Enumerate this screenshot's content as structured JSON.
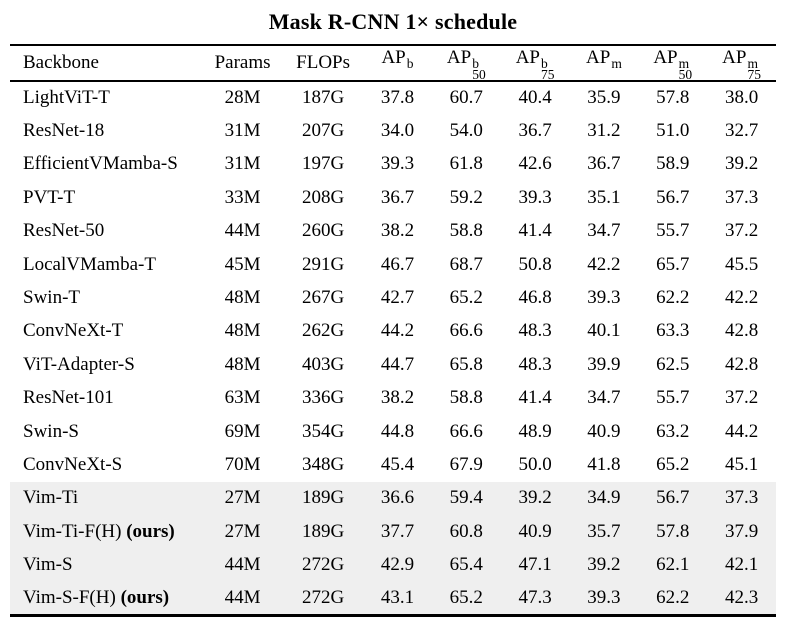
{
  "title": "Mask R-CNN 1× schedule",
  "colors": {
    "text": "#000000",
    "rule": "#000000",
    "highlight_row_bg": "#efefef",
    "background": "#ffffff"
  },
  "table": {
    "columns": [
      {
        "label": "Backbone",
        "sup": "",
        "sub": ""
      },
      {
        "label": "Params",
        "sup": "",
        "sub": ""
      },
      {
        "label": "FLOPs",
        "sup": "",
        "sub": ""
      },
      {
        "label": "AP",
        "sup": "b",
        "sub": ""
      },
      {
        "label": "AP",
        "sup": "b",
        "sub": "50"
      },
      {
        "label": "AP",
        "sup": "b",
        "sub": "75"
      },
      {
        "label": "AP",
        "sup": "m",
        "sub": ""
      },
      {
        "label": "AP",
        "sup": "m",
        "sub": "50"
      },
      {
        "label": "AP",
        "sup": "m",
        "sub": "75"
      }
    ],
    "rows": [
      {
        "backbone": "LightViT-T",
        "suffix": "",
        "highlighted": false,
        "values": [
          "28M",
          "187G",
          "37.8",
          "60.7",
          "40.4",
          "35.9",
          "57.8",
          "38.0"
        ]
      },
      {
        "backbone": "ResNet-18",
        "suffix": "",
        "highlighted": false,
        "values": [
          "31M",
          "207G",
          "34.0",
          "54.0",
          "36.7",
          "31.2",
          "51.0",
          "32.7"
        ]
      },
      {
        "backbone": "EfficientVMamba-S",
        "suffix": "",
        "highlighted": false,
        "values": [
          "31M",
          "197G",
          "39.3",
          "61.8",
          "42.6",
          "36.7",
          "58.9",
          "39.2"
        ]
      },
      {
        "backbone": "PVT-T",
        "suffix": "",
        "highlighted": false,
        "values": [
          "33M",
          "208G",
          "36.7",
          "59.2",
          "39.3",
          "35.1",
          "56.7",
          "37.3"
        ]
      },
      {
        "backbone": "ResNet-50",
        "suffix": "",
        "highlighted": false,
        "values": [
          "44M",
          "260G",
          "38.2",
          "58.8",
          "41.4",
          "34.7",
          "55.7",
          "37.2"
        ]
      },
      {
        "backbone": "LocalVMamba-T",
        "suffix": "",
        "highlighted": false,
        "values": [
          "45M",
          "291G",
          "46.7",
          "68.7",
          "50.8",
          "42.2",
          "65.7",
          "45.5"
        ]
      },
      {
        "backbone": "Swin-T",
        "suffix": "",
        "highlighted": false,
        "values": [
          "48M",
          "267G",
          "42.7",
          "65.2",
          "46.8",
          "39.3",
          "62.2",
          "42.2"
        ]
      },
      {
        "backbone": "ConvNeXt-T",
        "suffix": "",
        "highlighted": false,
        "values": [
          "48M",
          "262G",
          "44.2",
          "66.6",
          "48.3",
          "40.1",
          "63.3",
          "42.8"
        ]
      },
      {
        "backbone": "ViT-Adapter-S",
        "suffix": "",
        "highlighted": false,
        "values": [
          "48M",
          "403G",
          "44.7",
          "65.8",
          "48.3",
          "39.9",
          "62.5",
          "42.8"
        ]
      },
      {
        "backbone": "ResNet-101",
        "suffix": "",
        "highlighted": false,
        "values": [
          "63M",
          "336G",
          "38.2",
          "58.8",
          "41.4",
          "34.7",
          "55.7",
          "37.2"
        ]
      },
      {
        "backbone": "Swin-S",
        "suffix": "",
        "highlighted": false,
        "values": [
          "69M",
          "354G",
          "44.8",
          "66.6",
          "48.9",
          "40.9",
          "63.2",
          "44.2"
        ]
      },
      {
        "backbone": "ConvNeXt-S",
        "suffix": "",
        "highlighted": false,
        "values": [
          "70M",
          "348G",
          "45.4",
          "67.9",
          "50.0",
          "41.8",
          "65.2",
          "45.1"
        ]
      },
      {
        "backbone": "Vim-Ti",
        "suffix": "",
        "highlighted": true,
        "values": [
          "27M",
          "189G",
          "36.6",
          "59.4",
          "39.2",
          "34.9",
          "56.7",
          "37.3"
        ]
      },
      {
        "backbone": "Vim-Ti-F(H)",
        "suffix": "(ours)",
        "highlighted": true,
        "values": [
          "27M",
          "189G",
          "37.7",
          "60.8",
          "40.9",
          "35.7",
          "57.8",
          "37.9"
        ]
      },
      {
        "backbone": "Vim-S",
        "suffix": "",
        "highlighted": true,
        "values": [
          "44M",
          "272G",
          "42.9",
          "65.4",
          "47.1",
          "39.2",
          "62.1",
          "42.1"
        ]
      },
      {
        "backbone": "Vim-S-F(H)",
        "suffix": "(ours)",
        "highlighted": true,
        "values": [
          "44M",
          "272G",
          "43.1",
          "65.2",
          "47.3",
          "39.3",
          "62.2",
          "42.3"
        ]
      }
    ]
  }
}
